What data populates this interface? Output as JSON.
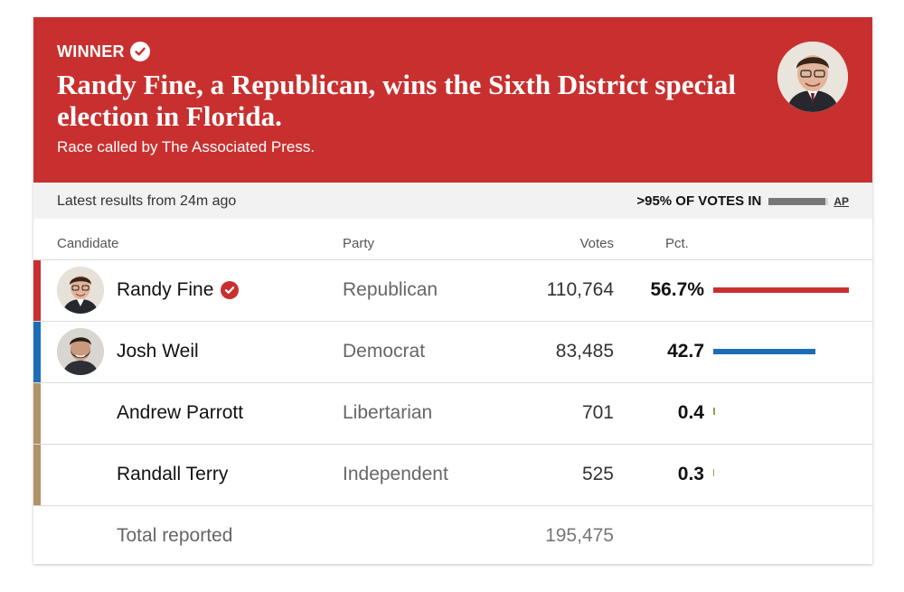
{
  "banner": {
    "winner_label": "WINNER",
    "headline": "Randy Fine, a Republican, wins the Sixth District special election in Florida.",
    "subline": "Race called by The Associated Press.",
    "bg_color": "#c8302f"
  },
  "status": {
    "latest": "Latest results from 24m ago",
    "pct_in": ">95% OF VOTES IN",
    "progress_fraction": 0.95,
    "source": "AP"
  },
  "columns": {
    "candidate": "Candidate",
    "party": "Party",
    "votes": "Votes",
    "pct": "Pct."
  },
  "candidates": [
    {
      "name": "Randy Fine",
      "party": "Republican",
      "votes": "110,764",
      "pct": "56.7%",
      "pct_value": 56.7,
      "color": "#c8302f",
      "bar_color": "#c8302f",
      "winner": true,
      "has_photo": true
    },
    {
      "name": "Josh Weil",
      "party": "Democrat",
      "votes": "83,485",
      "pct": "42.7",
      "pct_value": 42.7,
      "color": "#1a6db6",
      "bar_color": "#1a6db6",
      "winner": false,
      "has_photo": true
    },
    {
      "name": "Andrew Parrott",
      "party": "Libertarian",
      "votes": "701",
      "pct": "0.4",
      "pct_value": 0.4,
      "color": "#b19366",
      "bar_color": "#8aa548",
      "winner": false,
      "has_photo": false
    },
    {
      "name": "Randall Terry",
      "party": "Independent",
      "votes": "525",
      "pct": "0.3",
      "pct_value": 0.3,
      "color": "#b19366",
      "bar_color": "#b19366",
      "winner": false,
      "has_photo": false
    }
  ],
  "total": {
    "label": "Total reported",
    "votes": "195,475"
  }
}
